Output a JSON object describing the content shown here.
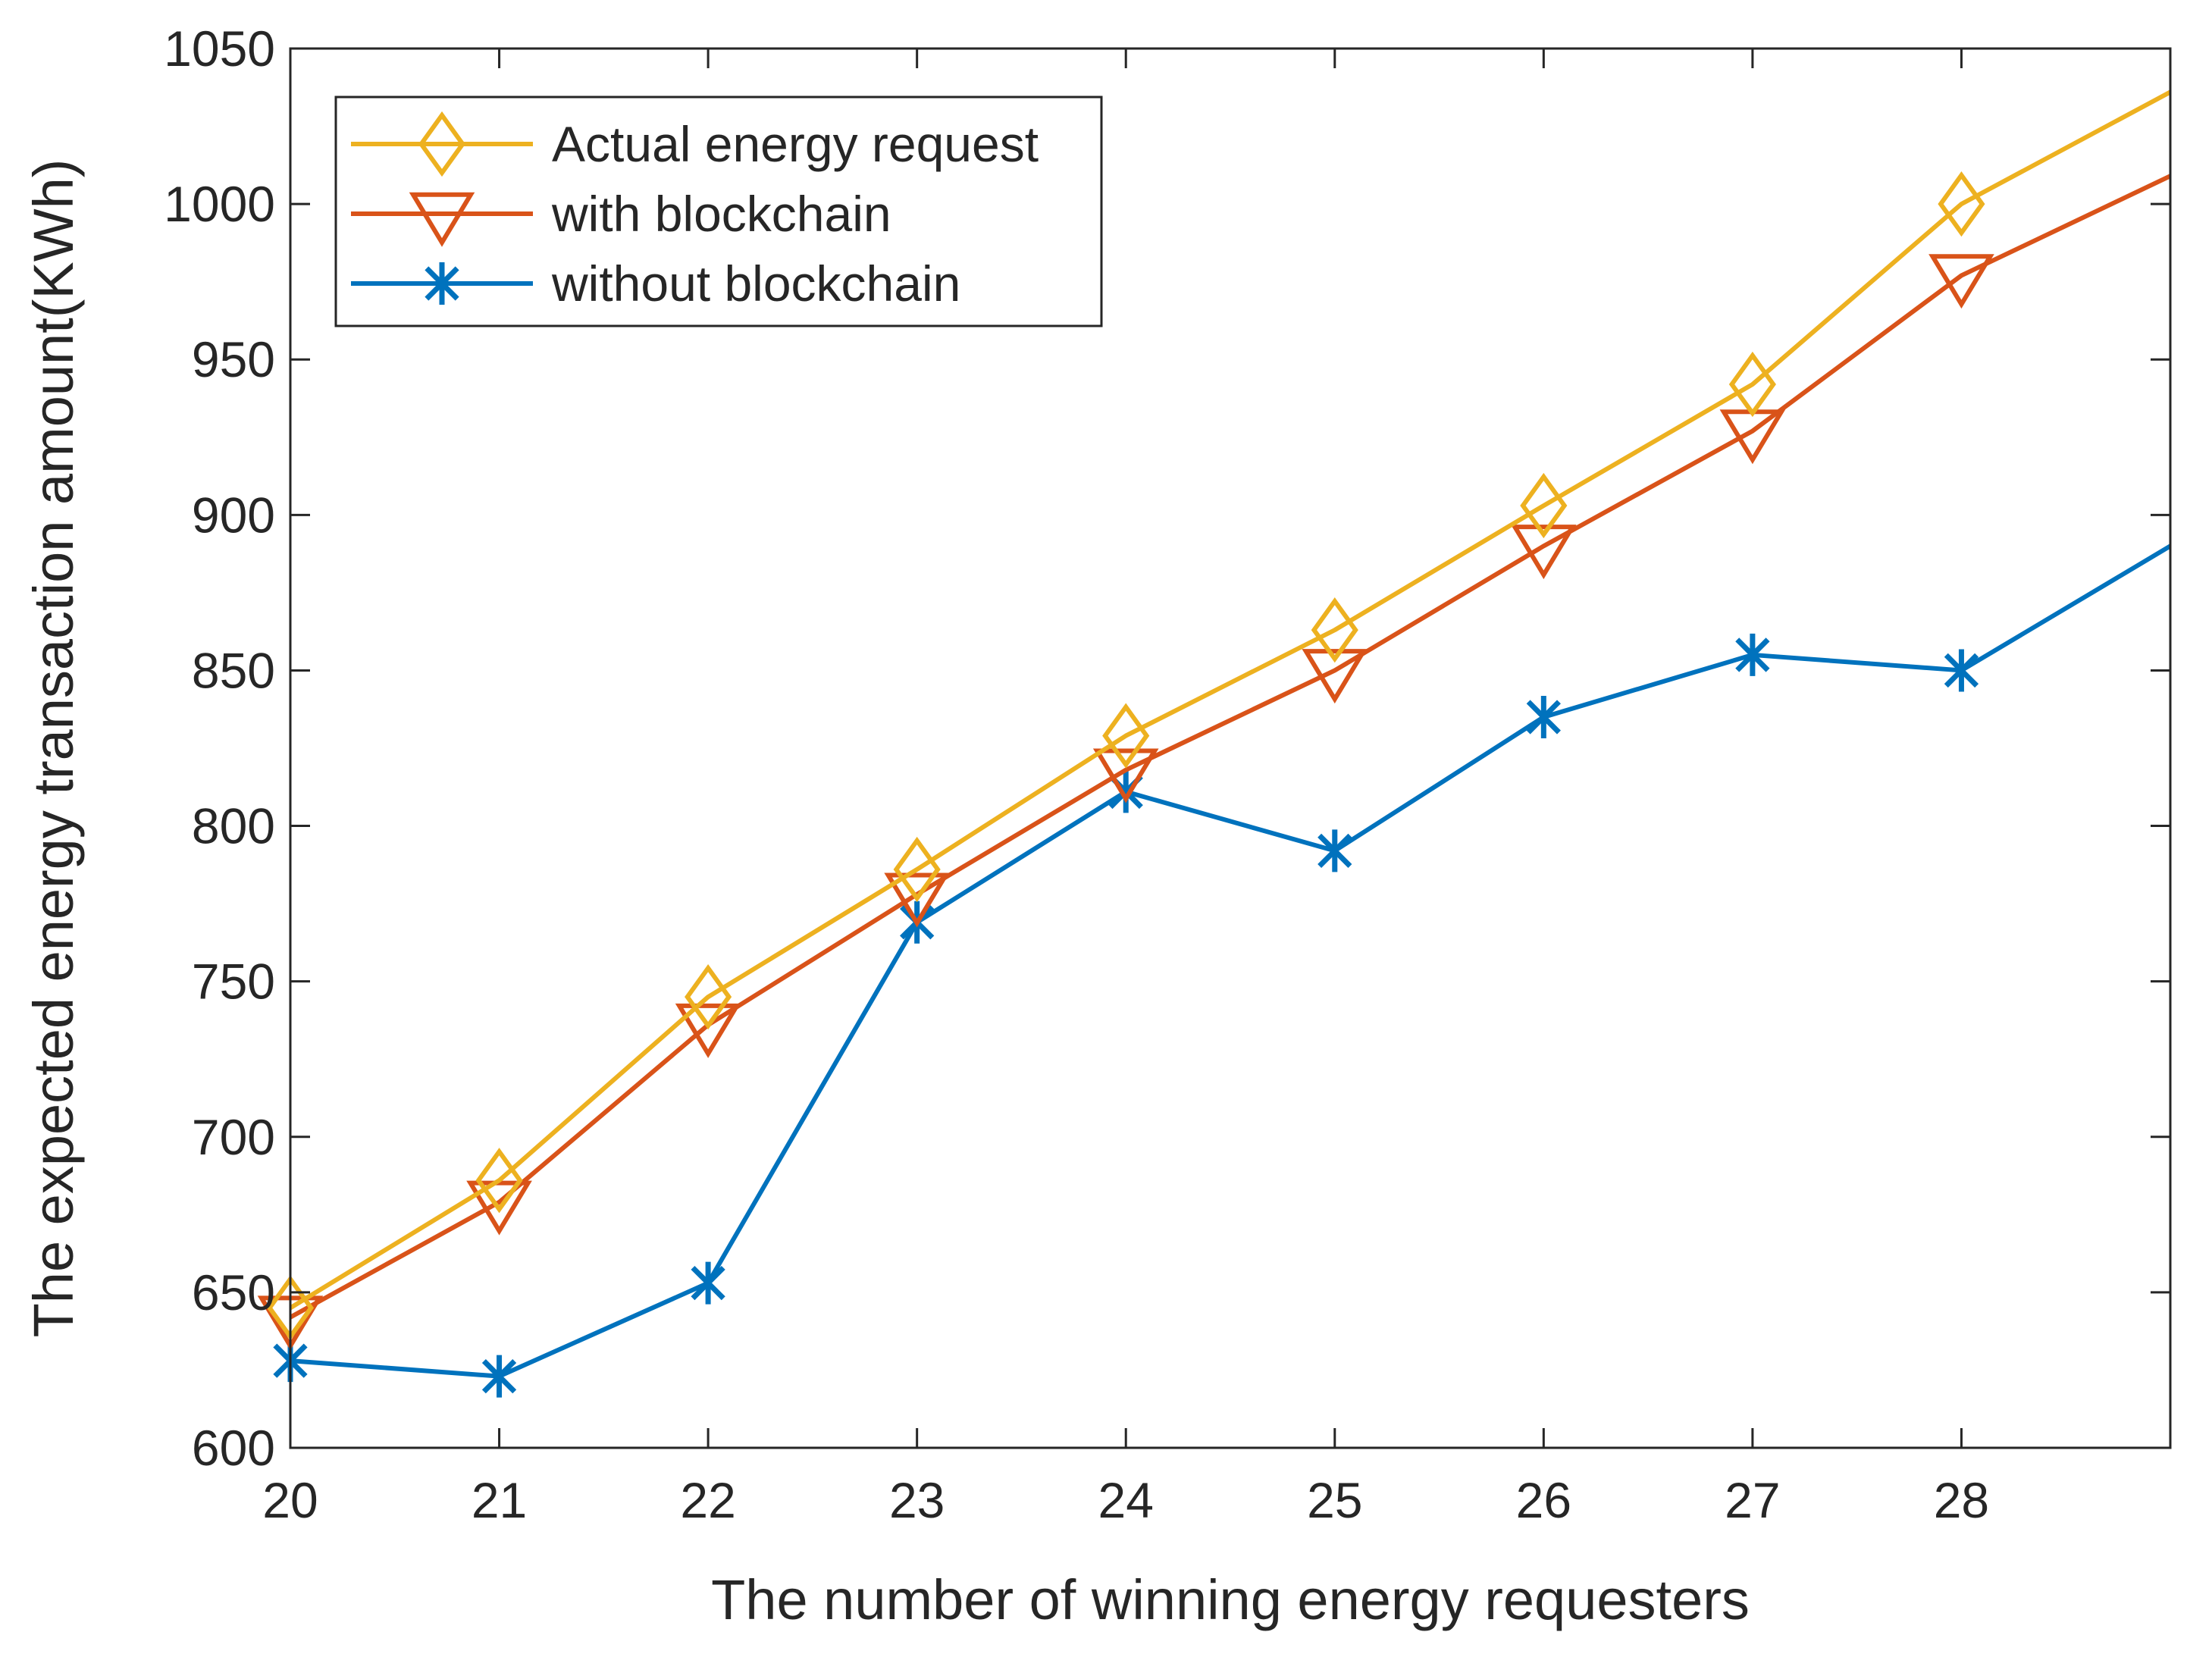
{
  "chart_data": {
    "type": "line",
    "title": "",
    "xlabel": "The number of winning energy requesters",
    "ylabel": "The expected energy transaction amount(KWh)",
    "xlim": [
      20,
      29
    ],
    "ylim": [
      600,
      1050
    ],
    "xticks": [
      20,
      21,
      22,
      23,
      24,
      25,
      26,
      27,
      28
    ],
    "xtick_labels": [
      "20",
      "21",
      "22",
      "23",
      "24",
      "25",
      "26",
      "27",
      "28"
    ],
    "yticks": [
      600,
      650,
      700,
      750,
      800,
      850,
      900,
      950,
      1000,
      1050
    ],
    "ytick_labels": [
      "600",
      "650",
      "700",
      "750",
      "800",
      "850",
      "900",
      "950",
      "1000",
      "1050"
    ],
    "grid": false,
    "legend_position": "top-left",
    "x": [
      20,
      21,
      22,
      23,
      24,
      25,
      26,
      27,
      28,
      29
    ],
    "series": [
      {
        "name": "Actual energy request",
        "marker": "diamond",
        "color": "#EDB120",
        "values": [
          645,
          686,
          745,
          786,
          829,
          863,
          903,
          942,
          1000,
          1036
        ]
      },
      {
        "name": "with blockchain",
        "marker": "triangle-down",
        "color": "#D95319",
        "values": [
          642,
          679,
          736,
          778,
          818,
          850,
          890,
          927,
          977,
          1009
        ]
      },
      {
        "name": "without blockchain",
        "marker": "asterisk",
        "color": "#0072BD",
        "values": [
          628,
          623,
          653,
          769,
          811,
          792,
          835,
          855,
          850,
          890
        ]
      }
    ]
  }
}
